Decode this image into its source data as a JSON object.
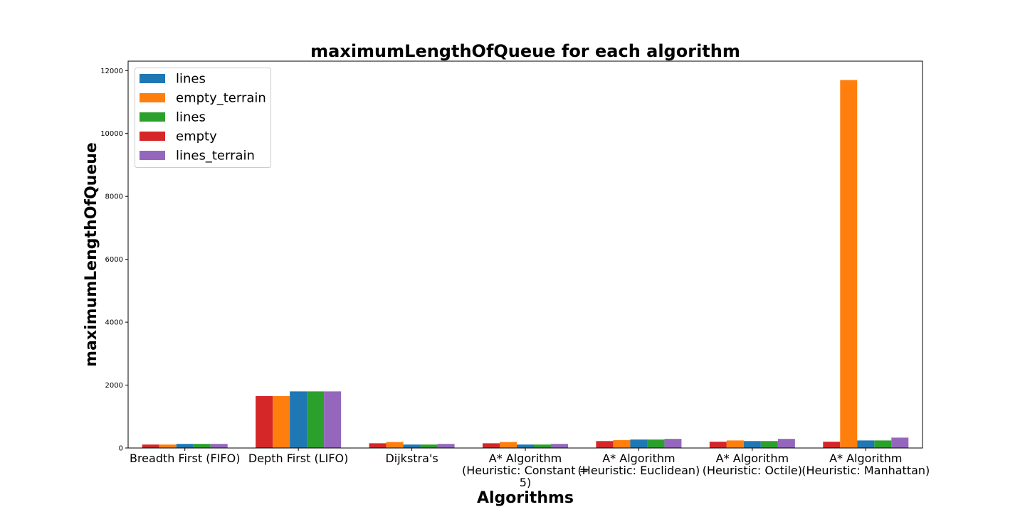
{
  "chart_data": {
    "type": "bar",
    "title": "maximumLengthOfQueue for each algorithm",
    "xlabel": "Algorithms",
    "ylabel": "maximumLengthOfQueue",
    "ylim": [
      0,
      12300
    ],
    "yticks": [
      0,
      2000,
      4000,
      6000,
      8000,
      10000,
      12000
    ],
    "grid": false,
    "legend_position": "top-left",
    "categories": [
      [
        "Breadth First (FIFO)"
      ],
      [
        "Depth First (LIFO)"
      ],
      [
        "Dijkstra's"
      ],
      [
        "A* Algorithm",
        "(Heuristic: Constant =",
        "5)"
      ],
      [
        "A* Algorithm",
        "(Heuristic: Euclidean)"
      ],
      [
        "A* Algorithm",
        "(Heuristic: Octile)"
      ],
      [
        "A* Algorithm",
        "(Heuristic: Manhattan)"
      ]
    ],
    "series": [
      {
        "name": "empty",
        "color": "#d62728",
        "values": [
          110,
          1650,
          150,
          150,
          220,
          200,
          200
        ]
      },
      {
        "name": "empty_terrain",
        "color": "#ff7f0e",
        "values": [
          110,
          1650,
          190,
          190,
          250,
          240,
          11700
        ]
      },
      {
        "name": "lines",
        "color": "#1f77b4",
        "values": [
          130,
          1800,
          110,
          110,
          270,
          220,
          240
        ]
      },
      {
        "name": "lines",
        "color": "#2ca02c",
        "values": [
          130,
          1800,
          110,
          110,
          270,
          220,
          240
        ]
      },
      {
        "name": "lines_terrain",
        "color": "#9467bd",
        "values": [
          130,
          1800,
          130,
          130,
          290,
          290,
          330
        ]
      }
    ],
    "legend_order": [
      2,
      1,
      3,
      0,
      4
    ]
  }
}
